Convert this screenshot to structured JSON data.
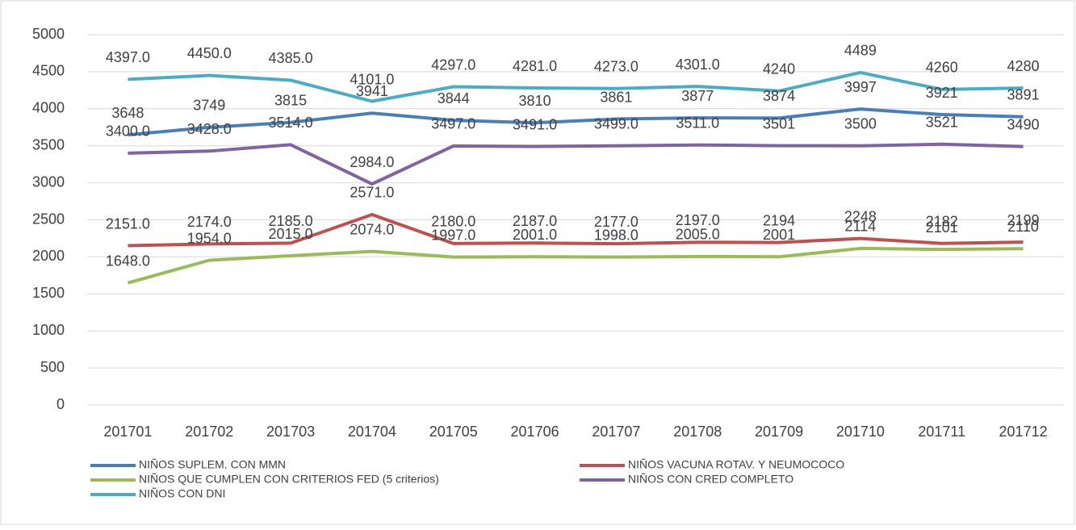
{
  "chart_data": {
    "type": "line",
    "categories": [
      "201701",
      "201702",
      "201703",
      "201704",
      "201705",
      "201706",
      "201707",
      "201708",
      "201709",
      "201710",
      "201711",
      "201712"
    ],
    "series": [
      {
        "name": "NIÑOS SUPLEM. CON MMN",
        "color": "#4a7ebb",
        "values": [
          3648,
          3749,
          3815,
          3941,
          3844,
          3810,
          3861,
          3877,
          3874,
          3997,
          3921,
          3891
        ]
      },
      {
        "name": "NIÑOS VACUNA ROTAV. Y NEUMOCOCO",
        "color": "#c0504d",
        "values": [
          2151,
          2174,
          2185,
          2571,
          2180,
          2187,
          2177,
          2197,
          2194,
          2248,
          2182,
          2199
        ],
        "value_labels": [
          "2151.0",
          "2174.0",
          "2185.0",
          "2571.0",
          "2180.0",
          "2187.0",
          "2177.0",
          "2197.0",
          "2194",
          "2248",
          "2182",
          "2199"
        ]
      },
      {
        "name": "NIÑOS QUE CUMPLEN CON CRITERIOS FED (5 criterios)",
        "color": "#9bbb59",
        "values": [
          1648,
          1954,
          2015,
          2074,
          1997,
          2001,
          1998,
          2005,
          2001,
          2114,
          2101,
          2110
        ],
        "value_labels": [
          "1648.0",
          "1954.0",
          "2015.0",
          "2074.0",
          "1997.0",
          "2001.0",
          "1998.0",
          "2005.0",
          "2001",
          "2114",
          "2101",
          "2110"
        ]
      },
      {
        "name": "NIÑOS CON CRED COMPLETO",
        "color": "#8064a2",
        "values": [
          3400,
          3428,
          3514,
          2984,
          3497,
          3491,
          3499,
          3511,
          3501,
          3500,
          3521,
          3490
        ],
        "value_labels": [
          "3400.0",
          "3428.0",
          "3514.0",
          "2984.0",
          "3497.0",
          "3491.0",
          "3499.0",
          "3511.0",
          "3501",
          "3500",
          "3521",
          "3490"
        ]
      },
      {
        "name": "NIÑOS CON DNI",
        "color": "#4bacc6",
        "values": [
          4397,
          4450,
          4385,
          4101,
          4297,
          4281,
          4273,
          4301,
          4240,
          4489,
          4260,
          4280
        ],
        "value_labels": [
          "4397.0",
          "4450.0",
          "4385.0",
          "4101.0",
          "4297.0",
          "4281.0",
          "4273.0",
          "4301.0",
          "4240",
          "4489",
          "4260",
          "4280"
        ]
      }
    ],
    "ylim": [
      0,
      5000
    ],
    "yticks": [
      0,
      500,
      1000,
      1500,
      2000,
      2500,
      3000,
      3500,
      4000,
      4500,
      5000
    ],
    "grid": true,
    "legend": "bottom"
  }
}
